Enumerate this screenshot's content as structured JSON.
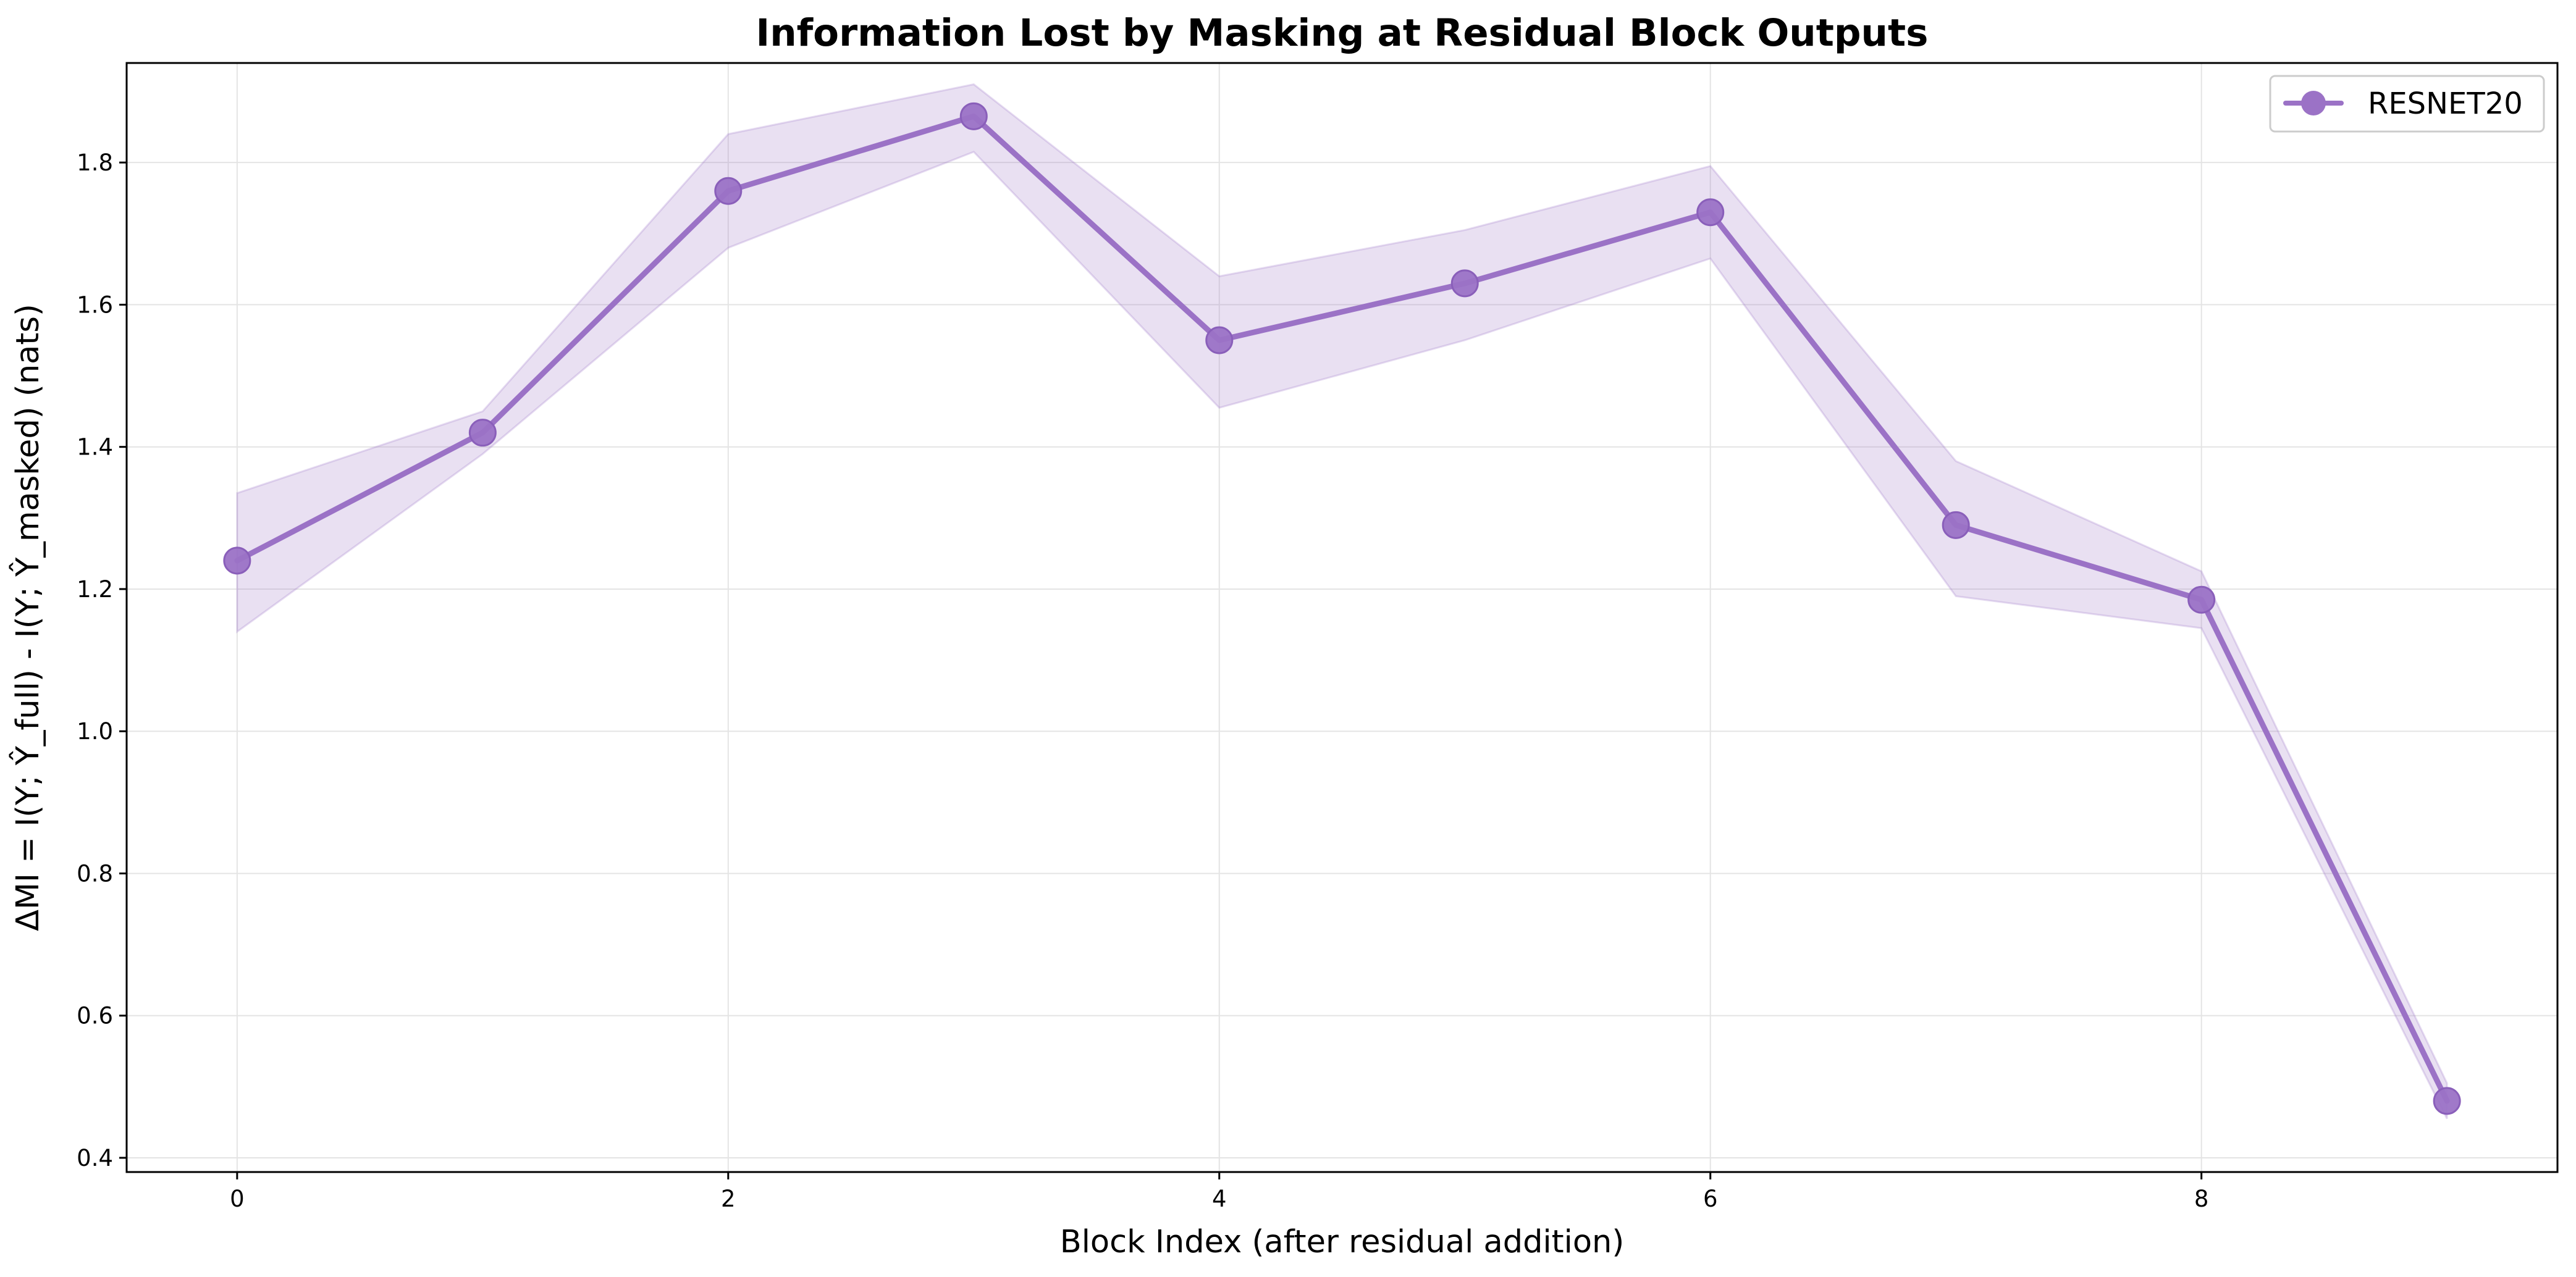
{
  "chart_data": {
    "type": "line",
    "title": "Information Lost by Masking at Residual Block Outputs",
    "xlabel": "Block Index (after residual addition)",
    "ylabel": "ΔMI = I(Y; Ŷ_full) - I(Y; Ŷ_masked) (nats)",
    "x": [
      0,
      1,
      2,
      3,
      4,
      5,
      6,
      7,
      8,
      9
    ],
    "xlim": [
      -0.45,
      9.45
    ],
    "ylim": [
      0.38,
      1.94
    ],
    "xticks": [
      0,
      2,
      4,
      6,
      8
    ],
    "yticks": [
      0.4,
      0.6,
      0.8,
      1.0,
      1.2,
      1.4,
      1.6,
      1.8
    ],
    "xtick_labels": [
      "0",
      "2",
      "4",
      "6",
      "8"
    ],
    "ytick_labels": [
      "0.4",
      "0.6",
      "0.8",
      "1.0",
      "1.2",
      "1.4",
      "1.6",
      "1.8"
    ],
    "grid": true,
    "legend_position": "top-right",
    "series": [
      {
        "name": "RESNET20",
        "color": "#9b72c6",
        "values": [
          1.24,
          1.42,
          1.76,
          1.865,
          1.55,
          1.63,
          1.73,
          1.29,
          1.185,
          0.48
        ],
        "upper": [
          1.335,
          1.45,
          1.84,
          1.91,
          1.64,
          1.705,
          1.795,
          1.38,
          1.225,
          0.505
        ],
        "lower": [
          1.14,
          1.39,
          1.68,
          1.815,
          1.455,
          1.55,
          1.665,
          1.19,
          1.145,
          0.455
        ]
      }
    ]
  }
}
